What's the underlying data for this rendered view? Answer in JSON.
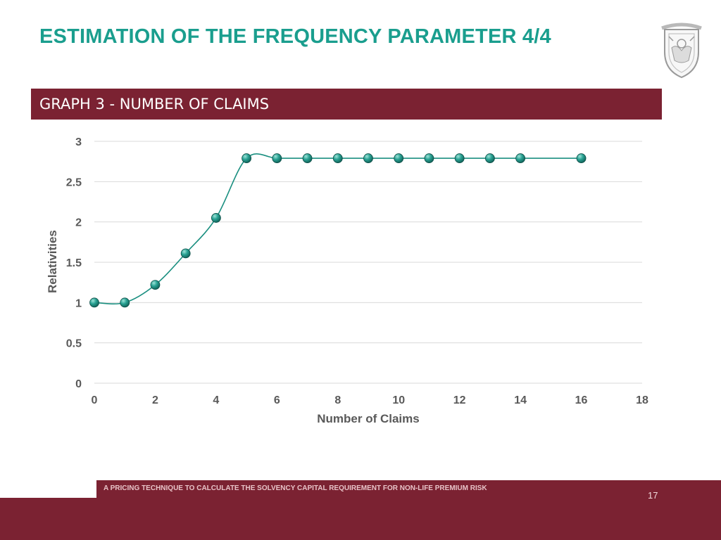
{
  "slide": {
    "title": "ESTIMATION OF THE FREQUENCY PARAMETER 4/4",
    "graph_title": "GRAPH 3 - NUMBER OF CLAIMS",
    "footer": "A PRICING TECHNIQUE TO CALCULATE THE SOLVENCY CAPITAL REQUIREMENT FOR NON-LIFE PREMIUM RISK",
    "page_number": "17",
    "logo_icon": "university-crest-icon"
  },
  "colors": {
    "title": "#1a9e8e",
    "banner": "#7b2232",
    "series": "#1a8f80",
    "marker": "#2aa394",
    "grid": "#d9d9d9"
  },
  "chart_data": {
    "type": "line",
    "xlabel": "Number of Claims",
    "ylabel": "Relativities",
    "xlim": [
      0,
      18
    ],
    "ylim": [
      0,
      3
    ],
    "x_ticks": [
      0,
      2,
      4,
      6,
      8,
      10,
      12,
      14,
      16,
      18
    ],
    "y_ticks": [
      0,
      0.5,
      1,
      1.5,
      2,
      2.5,
      3
    ],
    "y_tick_labels": [
      "0",
      "0.5",
      "1",
      "1.5",
      "2",
      "2.5",
      "3"
    ],
    "grid": "horizontal",
    "smooth": true,
    "series": [
      {
        "x": [
          0,
          1,
          2,
          3,
          4,
          5,
          6,
          7,
          8,
          9,
          10,
          11,
          12,
          13,
          14,
          16
        ],
        "y": [
          1,
          1,
          1.22,
          1.61,
          2.05,
          2.79,
          2.79,
          2.79,
          2.79,
          2.79,
          2.79,
          2.79,
          2.79,
          2.79,
          2.79,
          2.79
        ]
      }
    ]
  }
}
